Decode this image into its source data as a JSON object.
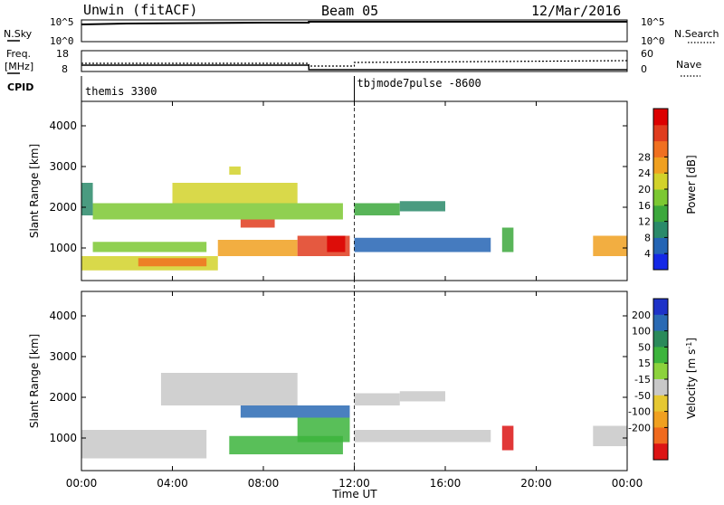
{
  "header": {
    "title": "Unwin (fitACF)",
    "beam": "Beam 05",
    "date": "12/Mar/2016"
  },
  "nsky_panel": {
    "left_label": "N.Sky",
    "right_label": "N.Search",
    "left_ticks": [
      "10^5",
      "10^0"
    ],
    "right_ticks": [
      "10^5",
      "10^0"
    ]
  },
  "freq_panel": {
    "left_label_line1": "Freq.",
    "left_label_line2": "[MHz]",
    "left_ticks": [
      "18",
      "8"
    ],
    "right_ticks": [
      "60",
      "0"
    ],
    "right_label": "Nave"
  },
  "cpid_panel": {
    "label": "CPID",
    "modes": [
      {
        "name": "themis 3300",
        "start_hour": 0
      },
      {
        "name": "tbjmode7pulse -8600",
        "start_hour": 12
      }
    ]
  },
  "x_axis": {
    "label": "Time UT",
    "ticks": [
      "00:00",
      "04:00",
      "08:00",
      "12:00",
      "16:00",
      "20:00",
      "00:00"
    ],
    "range_hours": [
      0,
      24
    ]
  },
  "power_panel": {
    "ylabel": "Slant Range [km]",
    "yticks": [
      "1000",
      "2000",
      "3000",
      "4000"
    ],
    "colorbar_label": "Power [dB]",
    "colorbar_ticks": [
      "4",
      "8",
      "12",
      "16",
      "20",
      "24",
      "28"
    ],
    "colors": [
      "#1428e6",
      "#2464b4",
      "#2a8a6a",
      "#3ca83c",
      "#7cc832",
      "#d2d22a",
      "#f0a020",
      "#f07020",
      "#e03c1e",
      "#dc0000"
    ]
  },
  "velocity_panel": {
    "ylabel": "Slant Range [km]",
    "yticks": [
      "1000",
      "2000",
      "3000",
      "4000"
    ],
    "colorbar_label": "Velocity [m s^-1]",
    "colorbar_ticks": [
      "200",
      "100",
      "50",
      "15",
      "-15",
      "-50",
      "-100",
      "-200"
    ],
    "colors": [
      "#1e32c8",
      "#2a6ab4",
      "#2a8a5a",
      "#3cb43c",
      "#8cd23c",
      "#c8c8c8",
      "#e6c832",
      "#f0a020",
      "#f06a1e",
      "#dc1414"
    ]
  },
  "chart_data": [
    {
      "type": "heatmap",
      "title": "Beam 05",
      "xlabel": "Time UT",
      "ylabel": "Slant Range [km]",
      "xlim": [
        0,
        24
      ],
      "ylim": [
        200,
        4600
      ],
      "colorbar": "Power [dB]",
      "clim": [
        0,
        32
      ],
      "regions": [
        {
          "t0": 0.0,
          "t1": 6.0,
          "r0": 450,
          "r1": 800,
          "value": 18
        },
        {
          "t0": 0.5,
          "t1": 5.5,
          "r0": 900,
          "r1": 1150,
          "value": 14
        },
        {
          "t0": 2.5,
          "t1": 5.5,
          "r0": 550,
          "r1": 750,
          "value": 24
        },
        {
          "t0": 6.0,
          "t1": 9.5,
          "r0": 800,
          "r1": 1200,
          "value": 22
        },
        {
          "t0": 9.5,
          "t1": 11.8,
          "r0": 800,
          "r1": 1300,
          "value": 26
        },
        {
          "t0": 10.8,
          "t1": 11.6,
          "r0": 900,
          "r1": 1300,
          "value": 30
        },
        {
          "t0": 0.5,
          "t1": 11.5,
          "r0": 1700,
          "r1": 2100,
          "value": 14
        },
        {
          "t0": 4.0,
          "t1": 9.5,
          "r0": 2100,
          "r1": 2600,
          "value": 18
        },
        {
          "t0": 7.0,
          "t1": 8.5,
          "r0": 1500,
          "r1": 1700,
          "value": 26
        },
        {
          "t0": 6.5,
          "t1": 7.0,
          "r0": 2800,
          "r1": 3000,
          "value": 18
        },
        {
          "t0": 12.0,
          "t1": 14.0,
          "r0": 1800,
          "r1": 2100,
          "value": 10
        },
        {
          "t0": 14.0,
          "t1": 16.0,
          "r0": 1900,
          "r1": 2150,
          "value": 8
        },
        {
          "t0": 12.0,
          "t1": 18.0,
          "r0": 900,
          "r1": 1250,
          "value": 6
        },
        {
          "t0": 18.5,
          "t1": 19.0,
          "r0": 900,
          "r1": 1500,
          "value": 12
        },
        {
          "t0": 22.5,
          "t1": 24.0,
          "r0": 800,
          "r1": 1300,
          "value": 20
        },
        {
          "t0": 0.0,
          "t1": 0.5,
          "r0": 1800,
          "r1": 2600,
          "value": 8
        }
      ]
    },
    {
      "type": "heatmap",
      "title": "",
      "xlabel": "Time UT",
      "ylabel": "Slant Range [km]",
      "xlim": [
        0,
        24
      ],
      "ylim": [
        200,
        4600
      ],
      "colorbar": "Velocity [m s^-1]",
      "clim": [
        -250,
        250
      ],
      "regions": [
        {
          "t0": 0.0,
          "t1": 5.5,
          "r0": 500,
          "r1": 1200,
          "value": 0
        },
        {
          "t0": 3.5,
          "t1": 9.5,
          "r0": 1800,
          "r1": 2600,
          "value": 0
        },
        {
          "t0": 7.0,
          "t1": 11.8,
          "r0": 1500,
          "r1": 1800,
          "value": -180
        },
        {
          "t0": 6.5,
          "t1": 11.5,
          "r0": 600,
          "r1": 1050,
          "value": -60
        },
        {
          "t0": 9.5,
          "t1": 11.8,
          "r0": 900,
          "r1": 1500,
          "value": -60
        },
        {
          "t0": 12.0,
          "t1": 14.0,
          "r0": 1800,
          "r1": 2100,
          "value": 0
        },
        {
          "t0": 14.0,
          "t1": 16.0,
          "r0": 1900,
          "r1": 2150,
          "value": 0
        },
        {
          "t0": 12.0,
          "t1": 18.0,
          "r0": 900,
          "r1": 1200,
          "value": 0
        },
        {
          "t0": 18.5,
          "t1": 19.0,
          "r0": 700,
          "r1": 1300,
          "value": 220
        },
        {
          "t0": 22.5,
          "t1": 24.0,
          "r0": 800,
          "r1": 1300,
          "value": 0
        }
      ]
    }
  ]
}
